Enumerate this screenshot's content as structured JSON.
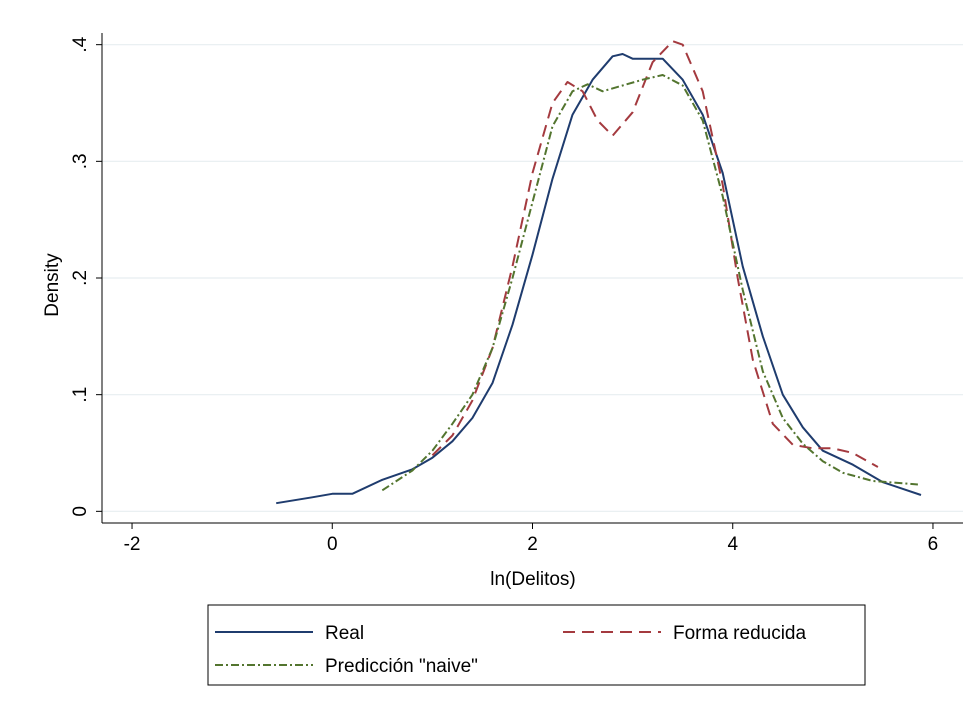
{
  "chart_data": {
    "type": "line",
    "xlabel": "ln(Delitos)",
    "ylabel": "Density",
    "xlim": [
      -2.3,
      6.3
    ],
    "ylim": [
      -0.01,
      0.41
    ],
    "x_ticks": [
      -2,
      0,
      2,
      4,
      6
    ],
    "x_tick_labels": [
      "-2",
      "0",
      "2",
      "4",
      "6"
    ],
    "y_ticks": [
      0,
      0.1,
      0.2,
      0.3,
      0.4
    ],
    "y_tick_labels": [
      "0",
      ".1",
      ".2",
      ".3",
      ".4"
    ],
    "grid": "horizontal",
    "legend_position": "bottom",
    "series": [
      {
        "name": "Real",
        "color": "#1f3c6e",
        "style": "solid",
        "points": [
          [
            -0.56,
            0.007
          ],
          [
            -0.2,
            0.012
          ],
          [
            0.0,
            0.015
          ],
          [
            0.2,
            0.015
          ],
          [
            0.5,
            0.027
          ],
          [
            0.8,
            0.036
          ],
          [
            1.0,
            0.046
          ],
          [
            1.2,
            0.06
          ],
          [
            1.4,
            0.08
          ],
          [
            1.6,
            0.11
          ],
          [
            1.8,
            0.16
          ],
          [
            2.0,
            0.22
          ],
          [
            2.2,
            0.285
          ],
          [
            2.4,
            0.34
          ],
          [
            2.6,
            0.37
          ],
          [
            2.8,
            0.39
          ],
          [
            2.9,
            0.392
          ],
          [
            3.0,
            0.388
          ],
          [
            3.3,
            0.388
          ],
          [
            3.5,
            0.37
          ],
          [
            3.7,
            0.34
          ],
          [
            3.9,
            0.29
          ],
          [
            4.1,
            0.21
          ],
          [
            4.3,
            0.15
          ],
          [
            4.5,
            0.1
          ],
          [
            4.7,
            0.072
          ],
          [
            4.9,
            0.052
          ],
          [
            5.2,
            0.04
          ],
          [
            5.5,
            0.025
          ],
          [
            5.88,
            0.014
          ]
        ]
      },
      {
        "name": "Forma reducida",
        "color": "#a43a3f",
        "style": "dashed",
        "points": [
          [
            1.0,
            0.048
          ],
          [
            1.2,
            0.065
          ],
          [
            1.4,
            0.095
          ],
          [
            1.6,
            0.14
          ],
          [
            1.8,
            0.21
          ],
          [
            2.0,
            0.29
          ],
          [
            2.2,
            0.35
          ],
          [
            2.35,
            0.368
          ],
          [
            2.5,
            0.36
          ],
          [
            2.65,
            0.335
          ],
          [
            2.8,
            0.322
          ],
          [
            3.0,
            0.342
          ],
          [
            3.2,
            0.385
          ],
          [
            3.4,
            0.403
          ],
          [
            3.5,
            0.4
          ],
          [
            3.7,
            0.36
          ],
          [
            3.9,
            0.28
          ],
          [
            4.05,
            0.2
          ],
          [
            4.2,
            0.13
          ],
          [
            4.4,
            0.075
          ],
          [
            4.6,
            0.057
          ],
          [
            4.8,
            0.054
          ],
          [
            5.0,
            0.054
          ],
          [
            5.2,
            0.05
          ],
          [
            5.45,
            0.038
          ]
        ]
      },
      {
        "name": "Predicción \"naive\"",
        "color": "#53752f",
        "style": "dashdot",
        "points": [
          [
            0.5,
            0.018
          ],
          [
            0.8,
            0.035
          ],
          [
            1.0,
            0.052
          ],
          [
            1.2,
            0.075
          ],
          [
            1.4,
            0.1
          ],
          [
            1.6,
            0.14
          ],
          [
            1.8,
            0.2
          ],
          [
            2.0,
            0.265
          ],
          [
            2.2,
            0.33
          ],
          [
            2.4,
            0.36
          ],
          [
            2.55,
            0.366
          ],
          [
            2.7,
            0.36
          ],
          [
            2.9,
            0.365
          ],
          [
            3.1,
            0.37
          ],
          [
            3.3,
            0.374
          ],
          [
            3.5,
            0.365
          ],
          [
            3.7,
            0.335
          ],
          [
            3.9,
            0.27
          ],
          [
            4.1,
            0.19
          ],
          [
            4.3,
            0.12
          ],
          [
            4.5,
            0.08
          ],
          [
            4.7,
            0.058
          ],
          [
            4.9,
            0.043
          ],
          [
            5.1,
            0.033
          ],
          [
            5.4,
            0.026
          ],
          [
            5.85,
            0.023
          ]
        ]
      }
    ]
  }
}
